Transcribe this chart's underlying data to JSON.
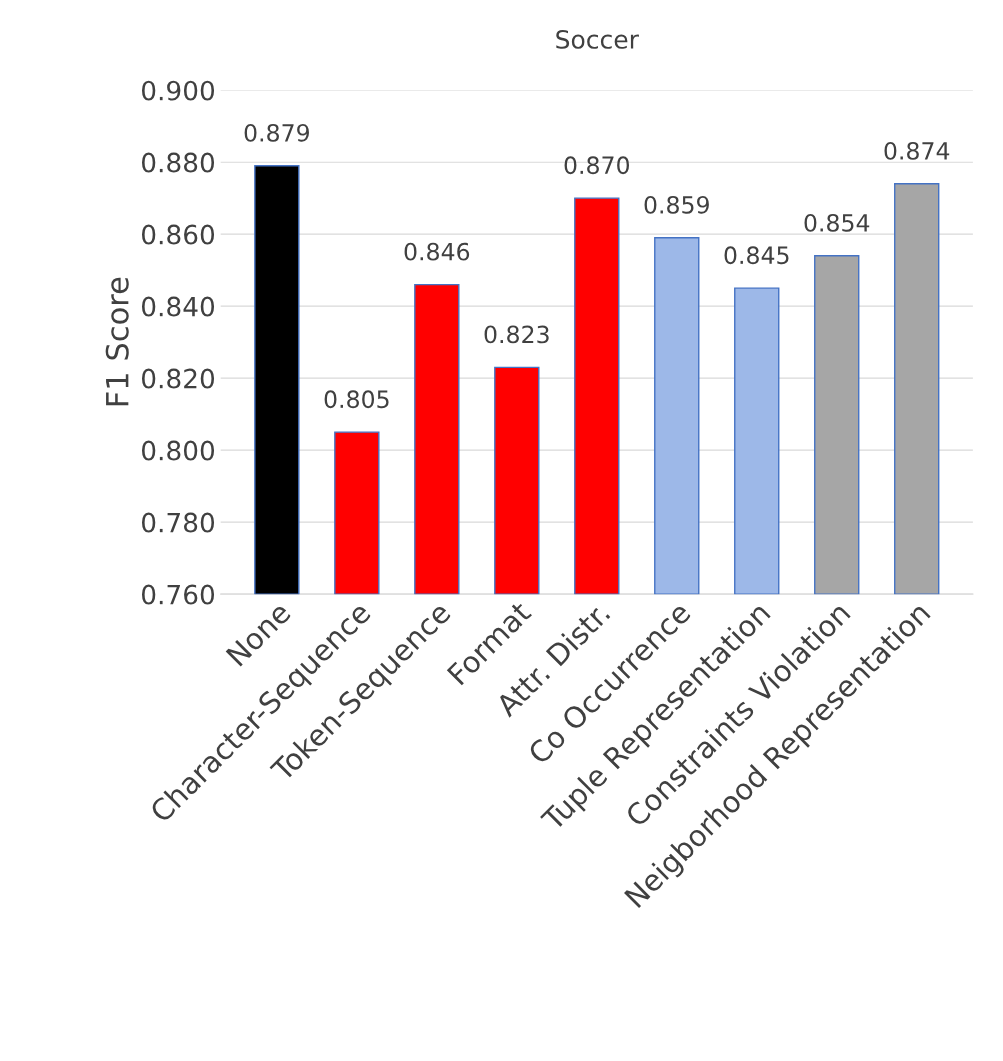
{
  "chart_data": {
    "type": "bar",
    "title": "Soccer",
    "ylabel": "F1 Score",
    "categories": [
      "None",
      "Character-Sequence",
      "Token-Sequence",
      "Format",
      "Attr. Distr.",
      "Co Occurrence",
      "Tuple Representation",
      "Constraints Violation",
      "Neigborhood Representation"
    ],
    "values": [
      0.879,
      0.805,
      0.846,
      0.823,
      0.87,
      0.859,
      0.845,
      0.854,
      0.874
    ],
    "value_labels": [
      "0.879",
      "0.805",
      "0.846",
      "0.823",
      "0.870",
      "0.859",
      "0.845",
      "0.854",
      "0.874"
    ],
    "colors": [
      "#000000",
      "#ff0000",
      "#ff0000",
      "#ff0000",
      "#ff0000",
      "#9db8e8",
      "#9db8e8",
      "#a6a6a6",
      "#a6a6a6"
    ],
    "ylim": [
      0.76,
      0.9
    ],
    "yticks": [
      {
        "value": 0.76,
        "label": "0.760"
      },
      {
        "value": 0.78,
        "label": "0.780"
      },
      {
        "value": 0.8,
        "label": "0.800"
      },
      {
        "value": 0.82,
        "label": "0.820"
      },
      {
        "value": 0.84,
        "label": "0.840"
      },
      {
        "value": 0.86,
        "label": "0.860"
      },
      {
        "value": 0.88,
        "label": "0.880"
      },
      {
        "value": 0.9,
        "label": "0.900"
      }
    ],
    "grid": "y",
    "legend": false
  }
}
